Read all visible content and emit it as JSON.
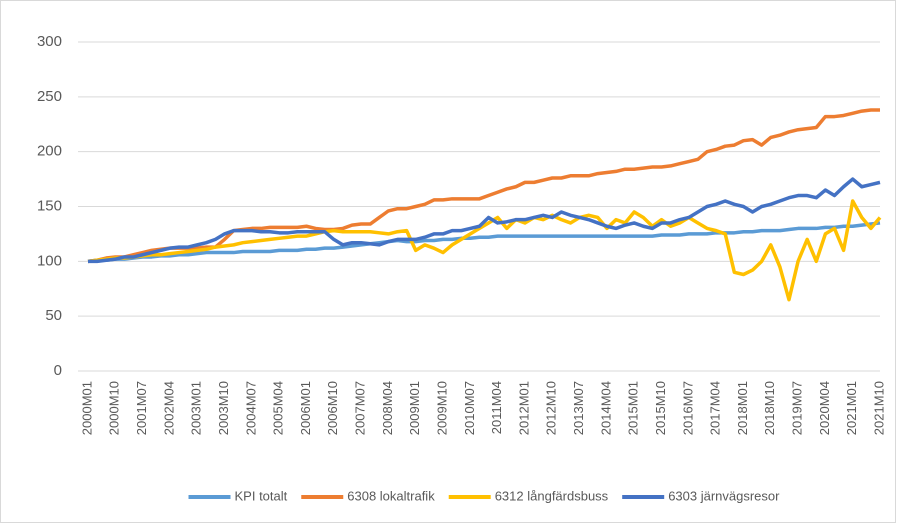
{
  "chart_data": {
    "type": "line",
    "categories": [
      "2000M01",
      null,
      null,
      "2000M10",
      null,
      null,
      "2001M07",
      null,
      null,
      "2002M04",
      null,
      null,
      "2003M01",
      null,
      null,
      "2003M10",
      null,
      null,
      "2004M07",
      null,
      null,
      "2005M04",
      null,
      null,
      "2006M01",
      null,
      null,
      "2006M10",
      null,
      null,
      "2007M07",
      null,
      null,
      "2008M04",
      null,
      null,
      "2009M01",
      null,
      null,
      "2009M10",
      null,
      null,
      "2010M07",
      null,
      null,
      "2011M04",
      null,
      null,
      "2012M01",
      null,
      null,
      "2012M10",
      null,
      null,
      "2013M07",
      null,
      null,
      "2014M04",
      null,
      null,
      "2015M01",
      null,
      null,
      "2015M10",
      null,
      null,
      "2016M07",
      null,
      null,
      "2017M04",
      null,
      null,
      "2018M01",
      null,
      null,
      "2018M10",
      null,
      null,
      "2019M07",
      null,
      null,
      "2020M04",
      null,
      null,
      "2021M01",
      null,
      null,
      "2021M10"
    ],
    "series": [
      {
        "name": "KPI totalt",
        "color": "#5b9bd5",
        "values": [
          100,
          101,
          101,
          102,
          102,
          103,
          104,
          104,
          105,
          105,
          106,
          106,
          107,
          108,
          108,
          108,
          108,
          109,
          109,
          109,
          109,
          110,
          110,
          110,
          111,
          111,
          112,
          112,
          113,
          114,
          115,
          116,
          117,
          118,
          119,
          118,
          118,
          119,
          119,
          120,
          120,
          121,
          121,
          122,
          122,
          123,
          123,
          123,
          123,
          123,
          123,
          123,
          123,
          123,
          123,
          123,
          123,
          123,
          123,
          123,
          123,
          123,
          123,
          124,
          124,
          124,
          125,
          125,
          125,
          126,
          126,
          126,
          127,
          127,
          128,
          128,
          128,
          129,
          130,
          130,
          130,
          131,
          131,
          132,
          132,
          133,
          134,
          135
        ]
      },
      {
        "name": "6308 lokaltrafik",
        "color": "#ed7d31",
        "values": [
          100,
          101,
          103,
          104,
          104,
          106,
          108,
          110,
          111,
          112,
          112,
          112,
          112,
          113,
          113,
          120,
          128,
          129,
          130,
          130,
          131,
          131,
          131,
          131,
          132,
          130,
          129,
          129,
          130,
          133,
          134,
          134,
          140,
          146,
          148,
          148,
          150,
          152,
          156,
          156,
          157,
          157,
          157,
          157,
          160,
          163,
          166,
          168,
          172,
          172,
          174,
          176,
          176,
          178,
          178,
          178,
          180,
          181,
          182,
          184,
          184,
          185,
          186,
          186,
          187,
          189,
          191,
          193,
          200,
          202,
          205,
          206,
          210,
          211,
          206,
          213,
          215,
          218,
          220,
          221,
          222,
          232,
          232,
          233,
          235,
          237,
          238,
          238
        ]
      },
      {
        "name": "6312 långfärdsbuss",
        "color": "#ffc000",
        "values": [
          100,
          101,
          102,
          103,
          103,
          104,
          105,
          106,
          106,
          107,
          108,
          109,
          110,
          111,
          113,
          114,
          115,
          117,
          118,
          119,
          120,
          121,
          122,
          123,
          123,
          125,
          127,
          128,
          127,
          127,
          127,
          127,
          126,
          125,
          127,
          128,
          110,
          115,
          112,
          108,
          115,
          120,
          125,
          130,
          135,
          140,
          130,
          138,
          135,
          140,
          138,
          142,
          138,
          135,
          140,
          142,
          140,
          130,
          138,
          135,
          145,
          140,
          132,
          138,
          132,
          135,
          140,
          135,
          130,
          128,
          125,
          90,
          88,
          92,
          100,
          115,
          95,
          65,
          100,
          120,
          100,
          125,
          130,
          110,
          155,
          140,
          130,
          140
        ]
      },
      {
        "name": "6303 järnvägsresor",
        "color": "#4472c4",
        "values": [
          100,
          100,
          101,
          102,
          104,
          104,
          106,
          108,
          110,
          112,
          113,
          113,
          115,
          117,
          120,
          125,
          128,
          128,
          128,
          127,
          127,
          126,
          126,
          127,
          127,
          127,
          127,
          120,
          115,
          117,
          117,
          116,
          115,
          118,
          120,
          120,
          120,
          122,
          125,
          125,
          128,
          128,
          130,
          132,
          140,
          135,
          136,
          138,
          138,
          140,
          142,
          140,
          145,
          142,
          140,
          138,
          135,
          132,
          130,
          133,
          135,
          132,
          130,
          135,
          135,
          138,
          140,
          145,
          150,
          152,
          155,
          152,
          150,
          145,
          150,
          152,
          155,
          158,
          160,
          160,
          158,
          165,
          160,
          168,
          175,
          168,
          170,
          172
        ]
      }
    ],
    "ylim": [
      0,
      300
    ],
    "yticks": [
      0,
      50,
      100,
      150,
      200,
      250,
      300
    ],
    "grid": true,
    "legend": "bottom"
  }
}
